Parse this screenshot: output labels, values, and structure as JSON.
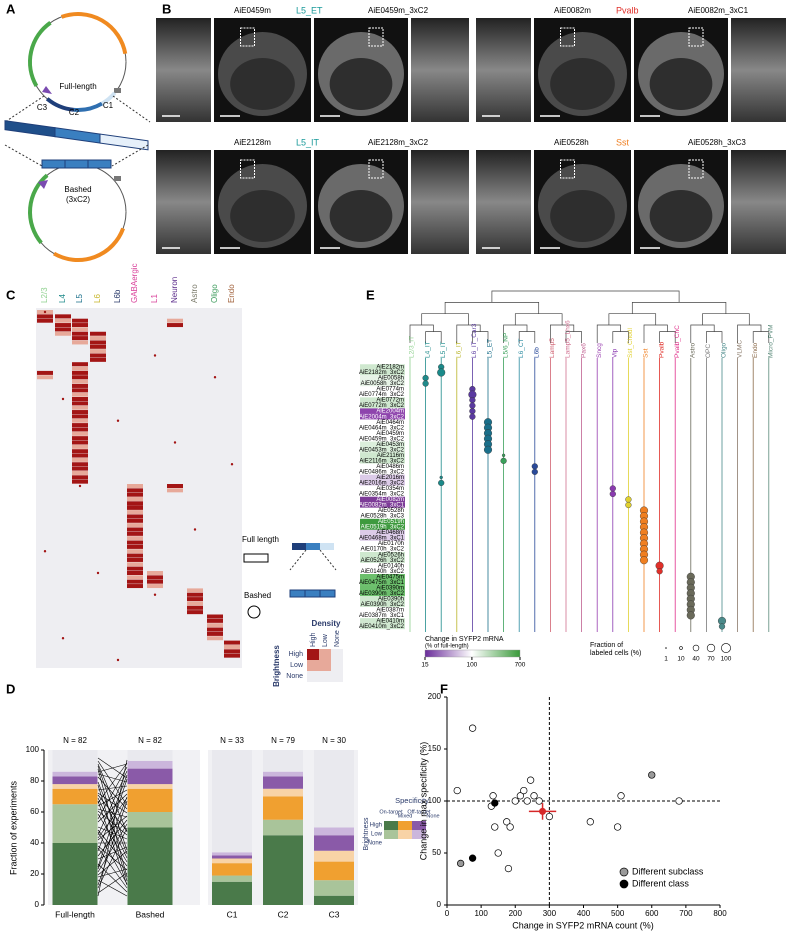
{
  "panel_labels": [
    "A",
    "B",
    "C",
    "D",
    "E",
    "F"
  ],
  "panel_a": {
    "full_length": "Full-length",
    "segments": [
      "C3",
      "C2",
      "C1"
    ],
    "bashed": "Bashed",
    "bashed_sub": "(3xC2)"
  },
  "panel_b": {
    "groups": [
      {
        "left": "AiE0459m",
        "type": "L5_ET",
        "type_color": "#1a9a9a",
        "right": "AiE0459m_3xC2"
      },
      {
        "left": "AiE0082m",
        "type": "Pvalb",
        "type_color": "#e0302a",
        "right": "AiE0082m_3xC1"
      },
      {
        "left": "AiE2128m",
        "type": "L5_IT",
        "type_color": "#1a9a9a",
        "right": "AiE2128m_3xC2"
      },
      {
        "left": "AiE0528h",
        "type": "Sst",
        "type_color": "#f07f20",
        "right": "AiE0528h_3xC3"
      }
    ]
  },
  "panel_c": {
    "columns": [
      {
        "label": "L2/3",
        "color": "#8fd18f"
      },
      {
        "label": "L4",
        "color": "#1f8a8a"
      },
      {
        "label": "L5",
        "color": "#1a6f8a"
      },
      {
        "label": "L6",
        "color": "#c7b62a"
      },
      {
        "label": "L6b",
        "color": "#2a3a6a"
      },
      {
        "label": "GABAergic",
        "color": "#d9409a"
      },
      {
        "label": "L1",
        "color": "#d9409a"
      },
      {
        "label": "Neuron",
        "color": "#5a2a8a"
      },
      {
        "label": "Astro",
        "color": "#7a7a6a"
      },
      {
        "label": "Oligo",
        "color": "#3a9a5a"
      },
      {
        "label": "Endo",
        "color": "#a0603a"
      }
    ],
    "legend": {
      "full_length": "Full length",
      "bashed": "Bashed",
      "density": "Density",
      "density_levels": [
        "High",
        "Low",
        "None"
      ],
      "brightness": "Brightness",
      "brightness_levels": [
        "High",
        "Low",
        "None"
      ]
    }
  },
  "chart_data": [
    {
      "type": "bar",
      "stacked": true,
      "ylabel": "Fraction of experiments",
      "categories": [
        "Full-length",
        "Bashed",
        "C1",
        "C2",
        "C3"
      ],
      "n_labels": [
        "N = 82",
        "N = 82",
        "N = 33",
        "N = 79",
        "N = 30"
      ],
      "ylim": [
        0,
        100
      ],
      "yticks": [
        0,
        20,
        40,
        60,
        80,
        100
      ],
      "series": [
        {
          "color": "#4a7a4a",
          "values": [
            40,
            50,
            15,
            45,
            6
          ]
        },
        {
          "color": "#a9c49a",
          "values": [
            25,
            10,
            4,
            10,
            10
          ]
        },
        {
          "color": "#f0a030",
          "values": [
            10,
            15,
            8,
            15,
            12
          ]
        },
        {
          "color": "#f8d3a6",
          "values": [
            3,
            3,
            3,
            5,
            7
          ]
        },
        {
          "color": "#8a5aa8",
          "values": [
            5,
            10,
            2,
            8,
            10
          ]
        },
        {
          "color": "#cbb6dc",
          "values": [
            3,
            5,
            2,
            3,
            5
          ]
        },
        {
          "color": "#e9e9ee",
          "values": [
            14,
            7,
            66,
            14,
            50
          ]
        }
      ],
      "legend": {
        "title": "Specificity",
        "columns": [
          "On-target",
          "Mixed",
          "Off-target",
          "None"
        ],
        "row_title": "Brightness",
        "rows": [
          "High",
          "Low",
          "None"
        ]
      }
    },
    {
      "type": "scatter",
      "xlabel": "Change in SYFP2 mRNA count (%)",
      "ylabel": "Change in max specificity (%)",
      "xlim": [
        0,
        800
      ],
      "xticks": [
        0,
        100,
        200,
        300,
        400,
        500,
        600,
        700,
        800
      ],
      "ylim": [
        0,
        200
      ],
      "yticks": [
        0,
        50,
        100,
        150,
        200
      ],
      "points": {
        "x": [
          75,
          30,
          135,
          140,
          150,
          175,
          180,
          185,
          200,
          215,
          225,
          235,
          245,
          255,
          270,
          300,
          420,
          500,
          510,
          680,
          130
        ],
        "y": [
          170,
          110,
          105,
          75,
          50,
          80,
          35,
          75,
          100,
          105,
          110,
          100,
          120,
          105,
          100,
          85,
          80,
          75,
          105,
          100,
          95
        ]
      },
      "series": [
        {
          "name": "Different subclass",
          "color": "#9a9a9a",
          "x": [
            40,
            600
          ],
          "y": [
            40,
            125
          ]
        },
        {
          "name": "Different class",
          "color": "#000000",
          "x": [
            75,
            140
          ],
          "y": [
            45,
            98
          ]
        }
      ],
      "mean": {
        "x": 280,
        "y": 90,
        "xerr": 40,
        "yerr": 8,
        "color": "#d62728"
      },
      "vline": 300,
      "hline": 100
    },
    {
      "type": "dot_plot",
      "columns": [
        {
          "label": "L2/3_IT",
          "color": "#8fd18f"
        },
        {
          "label": "L4_IT",
          "color": "#1f8a8a"
        },
        {
          "label": "L5_IT",
          "color": "#1a8a8a"
        },
        {
          "label": "L6_IT",
          "color": "#b9b52a"
        },
        {
          "label": "L6_IT_Car3",
          "color": "#5a3aa0"
        },
        {
          "label": "L5_ET",
          "color": "#1a6f8a"
        },
        {
          "label": "L5/6_NP",
          "color": "#3aa05a"
        },
        {
          "label": "L6_CT",
          "color": "#2a8aa0"
        },
        {
          "label": "L6b",
          "color": "#2a4a9a"
        },
        {
          "label": "Lamp5",
          "color": "#d06070"
        },
        {
          "label": "Lamp5_Lhx6",
          "color": "#d07090"
        },
        {
          "label": "Pax6",
          "color": "#c06090"
        },
        {
          "label": "Sncg",
          "color": "#9a40b0"
        },
        {
          "label": "Vip",
          "color": "#8a3ab0"
        },
        {
          "label": "Sst_Chodl",
          "color": "#e0d030"
        },
        {
          "label": "Sst",
          "color": "#f07f20"
        },
        {
          "label": "Pvalb",
          "color": "#e0302a"
        },
        {
          "label": "Pvalb_ChC",
          "color": "#e0308a"
        },
        {
          "label": "Astro",
          "color": "#6a6a5a"
        },
        {
          "label": "OPC",
          "color": "#7a7a7a"
        },
        {
          "label": "Oligo",
          "color": "#4a8a8a"
        },
        {
          "label": "VLMC",
          "color": "#8a7a6a"
        },
        {
          "label": "Endo",
          "color": "#8a6a4a"
        },
        {
          "label": "Micro_PVM",
          "color": "#5a8a7a"
        }
      ],
      "rows": [
        {
          "label": "AiE2182m",
          "color": "#cfe8cf",
          "target": "L5_IT",
          "fraction": 40
        },
        {
          "label": "AiE2182m_3xC2",
          "color": "#cfe8cf",
          "target": "L5_IT",
          "fraction": 70
        },
        {
          "label": "AiE0058h",
          "color": "#e6f3e6",
          "target": "L4_IT",
          "fraction": 40
        },
        {
          "label": "AiE0058h_3xC2",
          "color": "#e6f3e6",
          "target": "L4_IT",
          "fraction": 40
        },
        {
          "label": "AiE0774m",
          "color": "#ffffff",
          "target": "L6_IT_Car3",
          "fraction": 40
        },
        {
          "label": "AiE0774m_3xC2",
          "color": "#ffffff",
          "target": "L6_IT_Car3",
          "fraction": 70
        },
        {
          "label": "AiE0772m",
          "color": "#cfe8cf",
          "target": "L6_IT_Car3",
          "fraction": 40
        },
        {
          "label": "AiE0772m_3xC2",
          "color": "#cfe8cf",
          "target": "L6_IT_Car3",
          "fraction": 40
        },
        {
          "label": "AiE2004m",
          "color": "#8e44ad",
          "target": "L6_IT_Car3",
          "fraction": 40
        },
        {
          "label": "AiE2004m_3xC2",
          "color": "#8e44ad",
          "target": "L6_IT_Car3",
          "fraction": 40
        },
        {
          "label": "AiE0464m",
          "color": "#ffffff",
          "target": "L5_ET",
          "fraction": 70
        },
        {
          "label": "AiE0464m_3xC2",
          "color": "#ffffff",
          "target": "L5_ET",
          "fraction": 70
        },
        {
          "label": "AiE0459m",
          "color": "#ffffff",
          "target": "L5_ET",
          "fraction": 70
        },
        {
          "label": "AiE0459m_3xC2",
          "color": "#ffffff",
          "target": "L5_ET",
          "fraction": 70
        },
        {
          "label": "AiE0453m",
          "color": "#dcefdc",
          "target": "L5_ET",
          "fraction": 70
        },
        {
          "label": "AiE0453m_3xC2",
          "color": "#dcefdc",
          "target": "L5_ET",
          "fraction": 70
        },
        {
          "label": "AiE2116m",
          "color": "#cfe8cf",
          "target": "L5/6_NP",
          "fraction": 10
        },
        {
          "label": "AiE2116m_3xC2",
          "color": "#cfe8cf",
          "target": "L5/6_NP",
          "fraction": 40
        },
        {
          "label": "AiE0486m",
          "color": "#ffffff",
          "target": "L6b",
          "fraction": 40
        },
        {
          "label": "AiE0486m_3xC2",
          "color": "#ffffff",
          "target": "L6b",
          "fraction": 40
        },
        {
          "label": "AiE2016m",
          "color": "#dccbe8",
          "target": "L5_IT",
          "fraction": 10
        },
        {
          "label": "AiE2016m_3xC2",
          "color": "#dccbe8",
          "target": "L5_IT",
          "fraction": 40
        },
        {
          "label": "AiE0354m",
          "color": "#ffffff",
          "target": "Vip",
          "fraction": 40
        },
        {
          "label": "AiE0354m_3xC2",
          "color": "#ffffff",
          "target": "Vip",
          "fraction": 40
        },
        {
          "label": "AiE0082m",
          "color": "#7d3c98",
          "target": "Sst_Chodl",
          "fraction": 40
        },
        {
          "label": "AiE0082m_3xC1",
          "color": "#7d3c98",
          "target": "Sst_Chodl",
          "fraction": 40
        },
        {
          "label": "AiE0528h",
          "color": "#ffffff",
          "target": "Sst",
          "fraction": 70
        },
        {
          "label": "AiE0528h_3xC3",
          "color": "#ffffff",
          "target": "Sst",
          "fraction": 70
        },
        {
          "label": "AiE0519h",
          "color": "#3e9a3e",
          "target": "Sst",
          "fraction": 70
        },
        {
          "label": "AiE0519h_3xC2",
          "color": "#3e9a3e",
          "target": "Sst",
          "fraction": 70
        },
        {
          "label": "AiE0468m",
          "color": "#dccbe8",
          "target": "Sst",
          "fraction": 70
        },
        {
          "label": "AiE0468m_3xC1",
          "color": "#dccbe8",
          "target": "Sst",
          "fraction": 70
        },
        {
          "label": "AiE0170h",
          "color": "#ffffff",
          "target": "Sst",
          "fraction": 70
        },
        {
          "label": "AiE0170h_3xC2",
          "color": "#ffffff",
          "target": "Sst",
          "fraction": 70
        },
        {
          "label": "AiE0526h",
          "color": "#cfe8cf",
          "target": "Sst",
          "fraction": 70
        },
        {
          "label": "AiE0526h_3xC2",
          "color": "#cfe8cf",
          "target": "Sst",
          "fraction": 70
        },
        {
          "label": "AiE0140h",
          "color": "#ffffff",
          "target": "Pvalb",
          "fraction": 70
        },
        {
          "label": "AiE0140h_3xC2",
          "color": "#ffffff",
          "target": "Pvalb",
          "fraction": 40
        },
        {
          "label": "AiE0475m",
          "color": "#6cbf6c",
          "target": "Astro",
          "fraction": 70
        },
        {
          "label": "AiE0475m_3xC1",
          "color": "#6cbf6c",
          "target": "Astro",
          "fraction": 70
        },
        {
          "label": "AiE0390m",
          "color": "#6cbf6c",
          "target": "Astro",
          "fraction": 70
        },
        {
          "label": "AiE0390m_3xC2",
          "color": "#6cbf6c",
          "target": "Astro",
          "fraction": 70
        },
        {
          "label": "AiE0390h",
          "color": "#cfe8cf",
          "target": "Astro",
          "fraction": 70
        },
        {
          "label": "AiE0390h_3xC2",
          "color": "#cfe8cf",
          "target": "Astro",
          "fraction": 70
        },
        {
          "label": "AiE0387m",
          "color": "#ffffff",
          "target": "Astro",
          "fraction": 70
        },
        {
          "label": "AiE0387m_3xC1",
          "color": "#ffffff",
          "target": "Astro",
          "fraction": 70
        },
        {
          "label": "AiE0410m",
          "color": "#cfe8cf",
          "target": "Oligo",
          "fraction": 70
        },
        {
          "label": "AiE0410m_3xC2",
          "color": "#cfe8cf",
          "target": "Oligo",
          "fraction": 40
        }
      ],
      "colorbar": {
        "title": "Change in SYFP2 mRNA",
        "subtitle": "(% of full-length)",
        "lim": [
          15,
          700
        ],
        "ticks": [
          15,
          100,
          700
        ],
        "log": true,
        "colors": [
          "#6a2c9a",
          "#ffffff",
          "#3a9a3a"
        ]
      },
      "size_legend": {
        "title": "Fraction of",
        "subtitle": "labeled cells (%)",
        "values": [
          1,
          10,
          40,
          70,
          100
        ]
      }
    }
  ]
}
